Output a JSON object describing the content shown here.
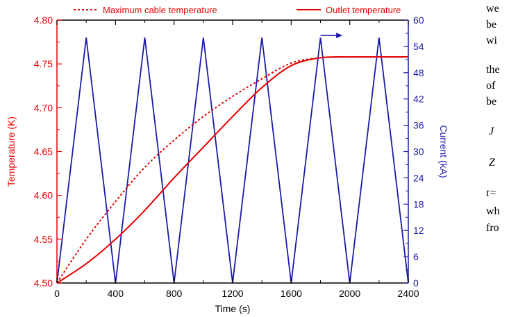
{
  "colors": {
    "left_axis": "#e60000",
    "right_axis": "#1a1aa8",
    "frame": "#000000"
  },
  "legend": {
    "items": [
      {
        "label": "Maximum cable temperature",
        "style": "dashed",
        "color": "#e60000"
      },
      {
        "label": "Outlet temperature",
        "style": "solid",
        "color": "#e60000"
      }
    ]
  },
  "side_text": {
    "lines": [
      "we",
      "be",
      "wi",
      "the",
      "of",
      "be",
      "J",
      "Z",
      "t=",
      "wh",
      "fro"
    ]
  },
  "chart_data": {
    "type": "line",
    "xlabel": "Time (s)",
    "ylabel_left": "Temperature (K)",
    "ylabel_right": "Current (kA)",
    "xlim": [
      0,
      2400
    ],
    "ylim_left": [
      4.5,
      4.8
    ],
    "ylim_right": [
      0,
      60
    ],
    "x_ticks": [
      0,
      400,
      800,
      1200,
      1600,
      2000,
      2400
    ],
    "y_ticks_left": [
      4.5,
      4.55,
      4.6,
      4.65,
      4.7,
      4.75,
      4.8
    ],
    "y_ticks_right": [
      0,
      6,
      12,
      18,
      24,
      30,
      36,
      42,
      48,
      54,
      60
    ],
    "grid": false,
    "annotation": {
      "type": "arrow",
      "direction": "right",
      "color": "#1a1aa8",
      "from": [
        1800,
        56.5
      ],
      "to": [
        1950,
        56.5
      ]
    },
    "series": [
      {
        "name": "Maximum cable temperature",
        "axis": "left",
        "style": "dashed",
        "color": "#e60000",
        "x": [
          0,
          200,
          400,
          600,
          800,
          1000,
          1200,
          1400,
          1600,
          1800,
          2000,
          2200,
          2400
        ],
        "y": [
          4.5,
          4.55,
          4.593,
          4.632,
          4.663,
          4.69,
          4.713,
          4.733,
          4.751,
          4.757,
          4.758,
          4.758,
          4.758
        ]
      },
      {
        "name": "Outlet temperature",
        "axis": "left",
        "style": "solid",
        "color": "#e60000",
        "x": [
          0,
          200,
          400,
          600,
          800,
          1000,
          1200,
          1400,
          1600,
          1800,
          2000,
          2200,
          2400
        ],
        "y": [
          4.5,
          4.522,
          4.55,
          4.583,
          4.62,
          4.655,
          4.69,
          4.723,
          4.748,
          4.757,
          4.758,
          4.758,
          4.758
        ]
      },
      {
        "name": "Current",
        "axis": "right",
        "style": "solid",
        "color": "#1a1aa8",
        "x": [
          0,
          200,
          400,
          600,
          800,
          1000,
          1200,
          1400,
          1600,
          1800,
          2000,
          2200,
          2400
        ],
        "y": [
          0,
          56,
          0,
          56,
          0,
          56,
          0,
          56,
          0,
          56,
          0,
          56,
          0
        ]
      }
    ]
  }
}
